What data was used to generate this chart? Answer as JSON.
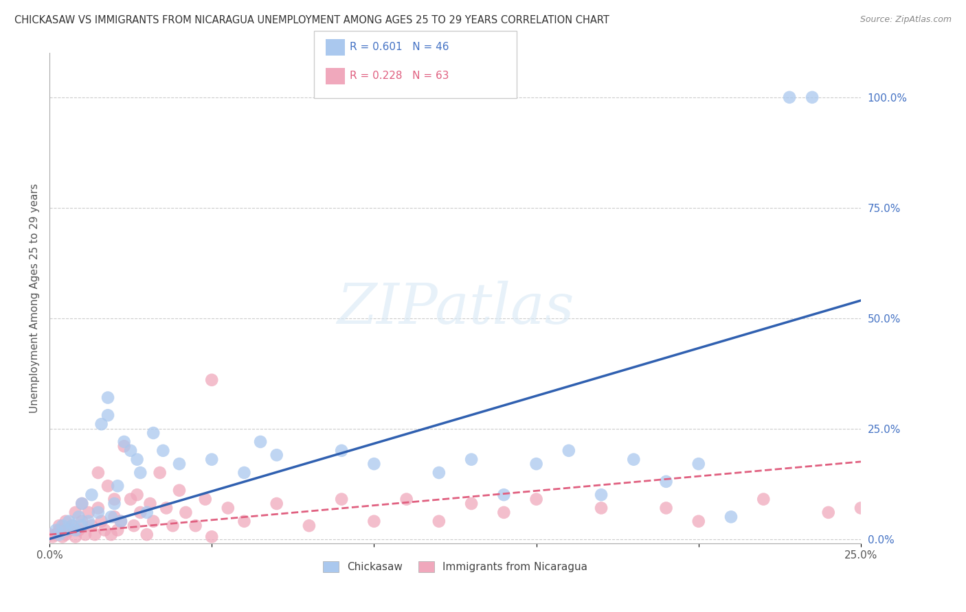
{
  "title": "CHICKASAW VS IMMIGRANTS FROM NICARAGUA UNEMPLOYMENT AMONG AGES 25 TO 29 YEARS CORRELATION CHART",
  "source": "Source: ZipAtlas.com",
  "ylabel": "Unemployment Among Ages 25 to 29 years",
  "xlim": [
    0.0,
    0.25
  ],
  "ylim": [
    -0.01,
    1.1
  ],
  "ytick_vals": [
    0.0,
    0.25,
    0.5,
    0.75,
    1.0
  ],
  "ytick_labels": [
    "0.0%",
    "25.0%",
    "50.0%",
    "75.0%",
    "100.0%"
  ],
  "xtick_vals": [
    0.0,
    0.05,
    0.1,
    0.15,
    0.2,
    0.25
  ],
  "xtick_labels": [
    "0.0%",
    "",
    "",
    "",
    "",
    "25.0%"
  ],
  "series1_name": "Chickasaw",
  "series1_color": "#aac8ee",
  "series1_line_color": "#3060b0",
  "series1_R": 0.601,
  "series1_N": 46,
  "series2_name": "Immigrants from Nicaragua",
  "series2_color": "#f0a8bc",
  "series2_line_color": "#e06080",
  "series2_R": 0.228,
  "series2_N": 63,
  "watermark": "ZIPatlas",
  "background_color": "#ffffff",
  "grid_color": "#cccccc",
  "line1_x0": 0.0,
  "line1_y0": 0.0,
  "line1_x1": 0.25,
  "line1_y1": 0.54,
  "line2_x0": 0.0,
  "line2_y0": 0.01,
  "line2_x1": 0.25,
  "line2_y1": 0.175,
  "s1_x": [
    0.002,
    0.003,
    0.004,
    0.005,
    0.006,
    0.007,
    0.008,
    0.009,
    0.01,
    0.01,
    0.012,
    0.013,
    0.015,
    0.016,
    0.018,
    0.018,
    0.019,
    0.02,
    0.021,
    0.022,
    0.023,
    0.025,
    0.027,
    0.028,
    0.03,
    0.032,
    0.035,
    0.04,
    0.05,
    0.06,
    0.065,
    0.07,
    0.09,
    0.1,
    0.12,
    0.13,
    0.14,
    0.15,
    0.16,
    0.17,
    0.18,
    0.19,
    0.2,
    0.21,
    0.228,
    0.235
  ],
  "s1_y": [
    0.02,
    0.01,
    0.03,
    0.02,
    0.04,
    0.03,
    0.02,
    0.05,
    0.03,
    0.08,
    0.04,
    0.1,
    0.06,
    0.26,
    0.32,
    0.28,
    0.05,
    0.08,
    0.12,
    0.04,
    0.22,
    0.2,
    0.18,
    0.15,
    0.06,
    0.24,
    0.2,
    0.17,
    0.18,
    0.15,
    0.22,
    0.19,
    0.2,
    0.17,
    0.15,
    0.18,
    0.1,
    0.17,
    0.2,
    0.1,
    0.18,
    0.13,
    0.17,
    0.05,
    1.0,
    1.0
  ],
  "s2_x": [
    0.0,
    0.001,
    0.002,
    0.003,
    0.003,
    0.004,
    0.005,
    0.005,
    0.006,
    0.007,
    0.008,
    0.008,
    0.009,
    0.01,
    0.01,
    0.011,
    0.012,
    0.013,
    0.014,
    0.015,
    0.015,
    0.016,
    0.017,
    0.018,
    0.019,
    0.02,
    0.02,
    0.021,
    0.022,
    0.023,
    0.025,
    0.026,
    0.027,
    0.028,
    0.03,
    0.031,
    0.032,
    0.034,
    0.036,
    0.038,
    0.04,
    0.042,
    0.045,
    0.048,
    0.05,
    0.05,
    0.055,
    0.06,
    0.07,
    0.08,
    0.09,
    0.1,
    0.11,
    0.12,
    0.13,
    0.14,
    0.15,
    0.17,
    0.19,
    0.2,
    0.22,
    0.24,
    0.25
  ],
  "s2_y": [
    0.01,
    0.005,
    0.01,
    0.02,
    0.03,
    0.005,
    0.01,
    0.04,
    0.02,
    0.03,
    0.005,
    0.06,
    0.02,
    0.04,
    0.08,
    0.01,
    0.06,
    0.03,
    0.01,
    0.07,
    0.15,
    0.04,
    0.02,
    0.12,
    0.01,
    0.05,
    0.09,
    0.02,
    0.04,
    0.21,
    0.09,
    0.03,
    0.1,
    0.06,
    0.01,
    0.08,
    0.04,
    0.15,
    0.07,
    0.03,
    0.11,
    0.06,
    0.03,
    0.09,
    0.005,
    0.36,
    0.07,
    0.04,
    0.08,
    0.03,
    0.09,
    0.04,
    0.09,
    0.04,
    0.08,
    0.06,
    0.09,
    0.07,
    0.07,
    0.04,
    0.09,
    0.06,
    0.07
  ]
}
